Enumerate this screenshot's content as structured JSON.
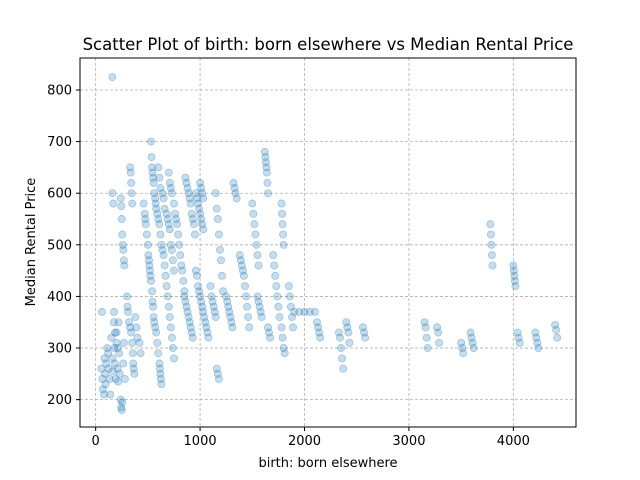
{
  "chart_data": {
    "type": "scatter",
    "title": "Scatter Plot of birth: born elsewhere vs Median Rental Price",
    "xlabel": "birth: born elsewhere",
    "ylabel": "Median Rental Price",
    "xlim": [
      -150,
      4600
    ],
    "ylim": [
      147,
      862
    ],
    "xticks": [
      0,
      1000,
      2000,
      3000,
      4000
    ],
    "xtick_labels": [
      "0",
      "1000",
      "2000",
      "3000",
      "4000"
    ],
    "yticks": [
      200,
      300,
      400,
      500,
      600,
      700,
      800
    ],
    "ytick_labels": [
      "200",
      "300",
      "400",
      "500",
      "600",
      "700",
      "800"
    ],
    "grid": true,
    "marker_color": "#1f77b4",
    "marker_alpha": 0.25,
    "points": [
      [
        160,
        825
      ],
      [
        60,
        370
      ],
      [
        55,
        260
      ],
      [
        65,
        240
      ],
      [
        70,
        220
      ],
      [
        80,
        210
      ],
      [
        85,
        280
      ],
      [
        90,
        250
      ],
      [
        95,
        230
      ],
      [
        100,
        270
      ],
      [
        110,
        300
      ],
      [
        120,
        290
      ],
      [
        125,
        260
      ],
      [
        135,
        240
      ],
      [
        140,
        210
      ],
      [
        150,
        320
      ],
      [
        160,
        280
      ],
      [
        165,
        255
      ],
      [
        175,
        350
      ],
      [
        180,
        300
      ],
      [
        185,
        270
      ],
      [
        190,
        240
      ],
      [
        200,
        330
      ],
      [
        210,
        260
      ],
      [
        215,
        235
      ],
      [
        225,
        290
      ],
      [
        230,
        250
      ],
      [
        240,
        200
      ],
      [
        245,
        185
      ],
      [
        250,
        180
      ],
      [
        255,
        195
      ],
      [
        265,
        270
      ],
      [
        270,
        310
      ],
      [
        280,
        240
      ],
      [
        160,
        600
      ],
      [
        170,
        580
      ],
      [
        175,
        370
      ],
      [
        185,
        330
      ],
      [
        200,
        310
      ],
      [
        210,
        300
      ],
      [
        220,
        350
      ],
      [
        240,
        590
      ],
      [
        245,
        575
      ],
      [
        250,
        550
      ],
      [
        255,
        520
      ],
      [
        260,
        500
      ],
      [
        265,
        490
      ],
      [
        270,
        470
      ],
      [
        275,
        460
      ],
      [
        300,
        400
      ],
      [
        305,
        380
      ],
      [
        310,
        370
      ],
      [
        320,
        350
      ],
      [
        330,
        340
      ],
      [
        340,
        330
      ],
      [
        350,
        310
      ],
      [
        355,
        290
      ],
      [
        360,
        270
      ],
      [
        365,
        260
      ],
      [
        370,
        250
      ],
      [
        330,
        650
      ],
      [
        335,
        640
      ],
      [
        340,
        620
      ],
      [
        345,
        600
      ],
      [
        350,
        580
      ],
      [
        380,
        360
      ],
      [
        390,
        340
      ],
      [
        400,
        320
      ],
      [
        420,
        310
      ],
      [
        430,
        290
      ],
      [
        460,
        580
      ],
      [
        470,
        560
      ],
      [
        475,
        550
      ],
      [
        480,
        540
      ],
      [
        490,
        520
      ],
      [
        500,
        500
      ],
      [
        505,
        480
      ],
      [
        510,
        470
      ],
      [
        515,
        460
      ],
      [
        520,
        450
      ],
      [
        525,
        440
      ],
      [
        530,
        430
      ],
      [
        540,
        410
      ],
      [
        545,
        390
      ],
      [
        550,
        380
      ],
      [
        555,
        360
      ],
      [
        560,
        350
      ],
      [
        570,
        340
      ],
      [
        580,
        330
      ],
      [
        590,
        310
      ],
      [
        600,
        290
      ],
      [
        610,
        270
      ],
      [
        615,
        260
      ],
      [
        620,
        250
      ],
      [
        625,
        240
      ],
      [
        630,
        230
      ],
      [
        530,
        700
      ],
      [
        535,
        670
      ],
      [
        540,
        650
      ],
      [
        545,
        640
      ],
      [
        550,
        630
      ],
      [
        555,
        620
      ],
      [
        560,
        600
      ],
      [
        570,
        590
      ],
      [
        575,
        580
      ],
      [
        580,
        570
      ],
      [
        590,
        560
      ],
      [
        600,
        550
      ],
      [
        610,
        540
      ],
      [
        620,
        520
      ],
      [
        630,
        500
      ],
      [
        640,
        490
      ],
      [
        650,
        480
      ],
      [
        660,
        460
      ],
      [
        670,
        440
      ],
      [
        680,
        420
      ],
      [
        690,
        400
      ],
      [
        700,
        380
      ],
      [
        710,
        360
      ],
      [
        720,
        340
      ],
      [
        730,
        320
      ],
      [
        740,
        300
      ],
      [
        750,
        280
      ],
      [
        600,
        650
      ],
      [
        610,
        630
      ],
      [
        620,
        610
      ],
      [
        640,
        600
      ],
      [
        650,
        590
      ],
      [
        660,
        570
      ],
      [
        680,
        560
      ],
      [
        690,
        550
      ],
      [
        700,
        540
      ],
      [
        710,
        530
      ],
      [
        720,
        500
      ],
      [
        730,
        490
      ],
      [
        740,
        470
      ],
      [
        750,
        450
      ],
      [
        700,
        640
      ],
      [
        710,
        620
      ],
      [
        720,
        610
      ],
      [
        730,
        600
      ],
      [
        750,
        580
      ],
      [
        760,
        560
      ],
      [
        770,
        550
      ],
      [
        780,
        540
      ],
      [
        790,
        520
      ],
      [
        800,
        500
      ],
      [
        810,
        480
      ],
      [
        820,
        460
      ],
      [
        830,
        450
      ],
      [
        840,
        430
      ],
      [
        850,
        410
      ],
      [
        860,
        630
      ],
      [
        870,
        620
      ],
      [
        880,
        610
      ],
      [
        890,
        600
      ],
      [
        900,
        590
      ],
      [
        910,
        580
      ],
      [
        920,
        560
      ],
      [
        930,
        550
      ],
      [
        940,
        540
      ],
      [
        950,
        520
      ],
      [
        850,
        400
      ],
      [
        860,
        390
      ],
      [
        870,
        380
      ],
      [
        880,
        370
      ],
      [
        890,
        360
      ],
      [
        900,
        350
      ],
      [
        910,
        340
      ],
      [
        920,
        330
      ],
      [
        930,
        320
      ],
      [
        960,
        600
      ],
      [
        970,
        590
      ],
      [
        980,
        580
      ],
      [
        990,
        570
      ],
      [
        1000,
        560
      ],
      [
        1010,
        550
      ],
      [
        1020,
        540
      ],
      [
        1030,
        530
      ],
      [
        960,
        450
      ],
      [
        970,
        440
      ],
      [
        980,
        420
      ],
      [
        990,
        410
      ],
      [
        1000,
        400
      ],
      [
        1010,
        390
      ],
      [
        1020,
        380
      ],
      [
        1030,
        370
      ],
      [
        1040,
        360
      ],
      [
        1050,
        350
      ],
      [
        1060,
        340
      ],
      [
        1070,
        330
      ],
      [
        1080,
        320
      ],
      [
        1000,
        620
      ],
      [
        1010,
        610
      ],
      [
        1020,
        600
      ],
      [
        1030,
        590
      ],
      [
        1100,
        420
      ],
      [
        1110,
        400
      ],
      [
        1120,
        390
      ],
      [
        1130,
        380
      ],
      [
        1140,
        370
      ],
      [
        1150,
        360
      ],
      [
        1150,
        600
      ],
      [
        1160,
        570
      ],
      [
        1170,
        550
      ],
      [
        1180,
        520
      ],
      [
        1190,
        490
      ],
      [
        1200,
        470
      ],
      [
        1210,
        440
      ],
      [
        1220,
        410
      ],
      [
        1160,
        260
      ],
      [
        1170,
        250
      ],
      [
        1180,
        240
      ],
      [
        1250,
        400
      ],
      [
        1260,
        390
      ],
      [
        1270,
        380
      ],
      [
        1280,
        370
      ],
      [
        1290,
        360
      ],
      [
        1300,
        350
      ],
      [
        1310,
        340
      ],
      [
        1320,
        620
      ],
      [
        1330,
        610
      ],
      [
        1340,
        600
      ],
      [
        1350,
        590
      ],
      [
        1380,
        480
      ],
      [
        1390,
        470
      ],
      [
        1400,
        460
      ],
      [
        1410,
        450
      ],
      [
        1420,
        440
      ],
      [
        1430,
        420
      ],
      [
        1440,
        400
      ],
      [
        1450,
        380
      ],
      [
        1460,
        360
      ],
      [
        1470,
        340
      ],
      [
        1500,
        580
      ],
      [
        1510,
        560
      ],
      [
        1520,
        540
      ],
      [
        1530,
        520
      ],
      [
        1540,
        500
      ],
      [
        1550,
        480
      ],
      [
        1560,
        460
      ],
      [
        1550,
        400
      ],
      [
        1560,
        390
      ],
      [
        1570,
        380
      ],
      [
        1580,
        370
      ],
      [
        1590,
        360
      ],
      [
        1620,
        680
      ],
      [
        1625,
        670
      ],
      [
        1630,
        660
      ],
      [
        1635,
        650
      ],
      [
        1640,
        640
      ],
      [
        1645,
        620
      ],
      [
        1650,
        600
      ],
      [
        1650,
        340
      ],
      [
        1660,
        330
      ],
      [
        1670,
        320
      ],
      [
        1700,
        480
      ],
      [
        1710,
        460
      ],
      [
        1720,
        440
      ],
      [
        1730,
        420
      ],
      [
        1740,
        400
      ],
      [
        1750,
        380
      ],
      [
        1760,
        360
      ],
      [
        1780,
        580
      ],
      [
        1785,
        560
      ],
      [
        1790,
        540
      ],
      [
        1795,
        520
      ],
      [
        1800,
        500
      ],
      [
        1780,
        340
      ],
      [
        1790,
        320
      ],
      [
        1800,
        300
      ],
      [
        1810,
        290
      ],
      [
        1850,
        420
      ],
      [
        1860,
        400
      ],
      [
        1870,
        380
      ],
      [
        1880,
        360
      ],
      [
        1890,
        340
      ],
      [
        1900,
        370
      ],
      [
        1950,
        370
      ],
      [
        2000,
        370
      ],
      [
        2050,
        370
      ],
      [
        2100,
        370
      ],
      [
        2120,
        350
      ],
      [
        2130,
        340
      ],
      [
        2140,
        330
      ],
      [
        2150,
        320
      ],
      [
        2330,
        330
      ],
      [
        2340,
        320
      ],
      [
        2350,
        300
      ],
      [
        2360,
        280
      ],
      [
        2370,
        260
      ],
      [
        2400,
        350
      ],
      [
        2410,
        340
      ],
      [
        2420,
        330
      ],
      [
        2430,
        310
      ],
      [
        2560,
        340
      ],
      [
        2570,
        330
      ],
      [
        2580,
        320
      ],
      [
        3150,
        350
      ],
      [
        3160,
        340
      ],
      [
        3170,
        320
      ],
      [
        3180,
        300
      ],
      [
        3270,
        340
      ],
      [
        3280,
        330
      ],
      [
        3290,
        310
      ],
      [
        3500,
        310
      ],
      [
        3510,
        300
      ],
      [
        3520,
        290
      ],
      [
        3590,
        330
      ],
      [
        3600,
        320
      ],
      [
        3610,
        310
      ],
      [
        3620,
        300
      ],
      [
        3780,
        540
      ],
      [
        3785,
        520
      ],
      [
        3790,
        500
      ],
      [
        3795,
        480
      ],
      [
        3800,
        460
      ],
      [
        4000,
        460
      ],
      [
        4005,
        450
      ],
      [
        4010,
        440
      ],
      [
        4015,
        430
      ],
      [
        4020,
        420
      ],
      [
        4040,
        330
      ],
      [
        4050,
        320
      ],
      [
        4060,
        310
      ],
      [
        4210,
        330
      ],
      [
        4220,
        320
      ],
      [
        4230,
        310
      ],
      [
        4240,
        300
      ],
      [
        4400,
        345
      ],
      [
        4410,
        335
      ],
      [
        4420,
        320
      ]
    ]
  }
}
